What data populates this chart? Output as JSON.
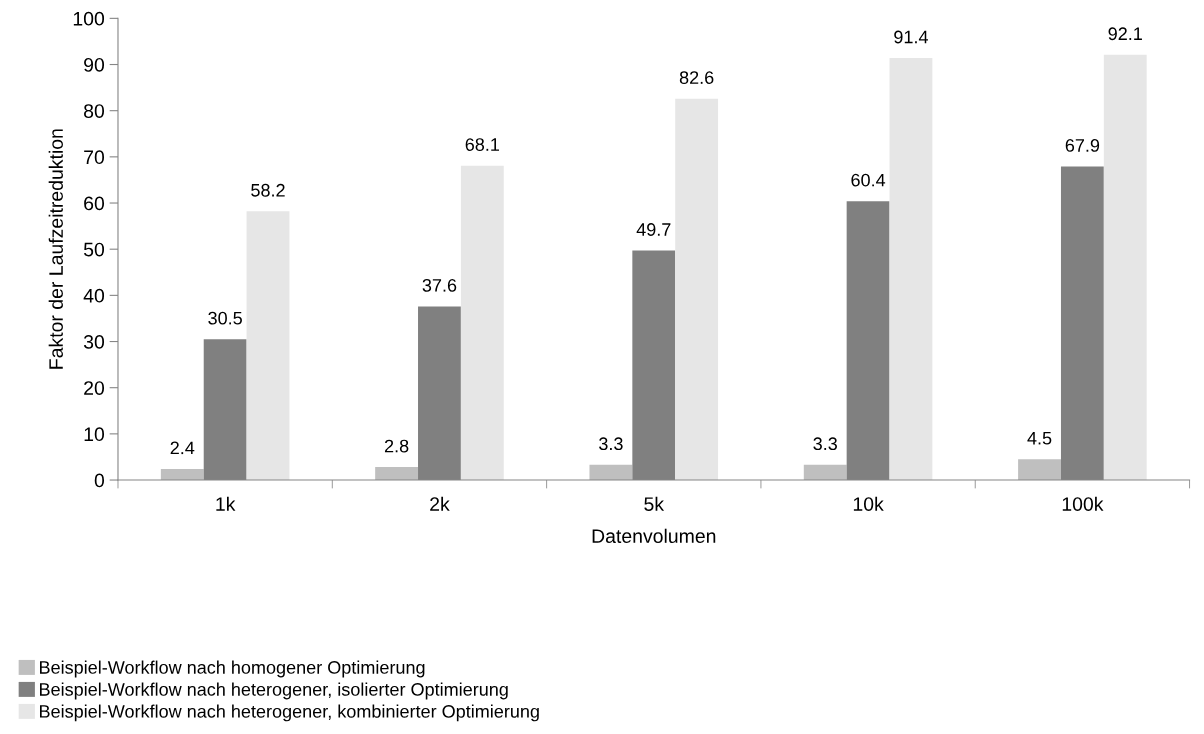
{
  "chart_data": {
    "type": "bar",
    "xlabel": "Datenvolumen",
    "ylabel": "Faktor der Laufzeitreduktion",
    "categories": [
      "1k",
      "2k",
      "5k",
      "10k",
      "100k"
    ],
    "series": [
      {
        "name": "Beispiel-Workflow nach homogener Optimierung",
        "color": "#bfbfbf",
        "values": [
          2.4,
          2.8,
          3.3,
          3.3,
          4.5
        ]
      },
      {
        "name": "Beispiel-Workflow nach heterogener, isolierter Optimierung",
        "color": "#808080",
        "values": [
          30.5,
          37.6,
          49.7,
          60.4,
          67.9
        ]
      },
      {
        "name": "Beispiel-Workflow nach heterogener, kombinierter Optimierung",
        "color": "#e6e6e6",
        "values": [
          58.2,
          68.1,
          82.6,
          91.4,
          92.1
        ]
      }
    ],
    "ylim": [
      0,
      100
    ],
    "yticks": [
      0,
      10,
      20,
      30,
      40,
      50,
      60,
      70,
      80,
      90,
      100
    ],
    "data_labels": true,
    "grid": false,
    "legend": "bottom left"
  }
}
